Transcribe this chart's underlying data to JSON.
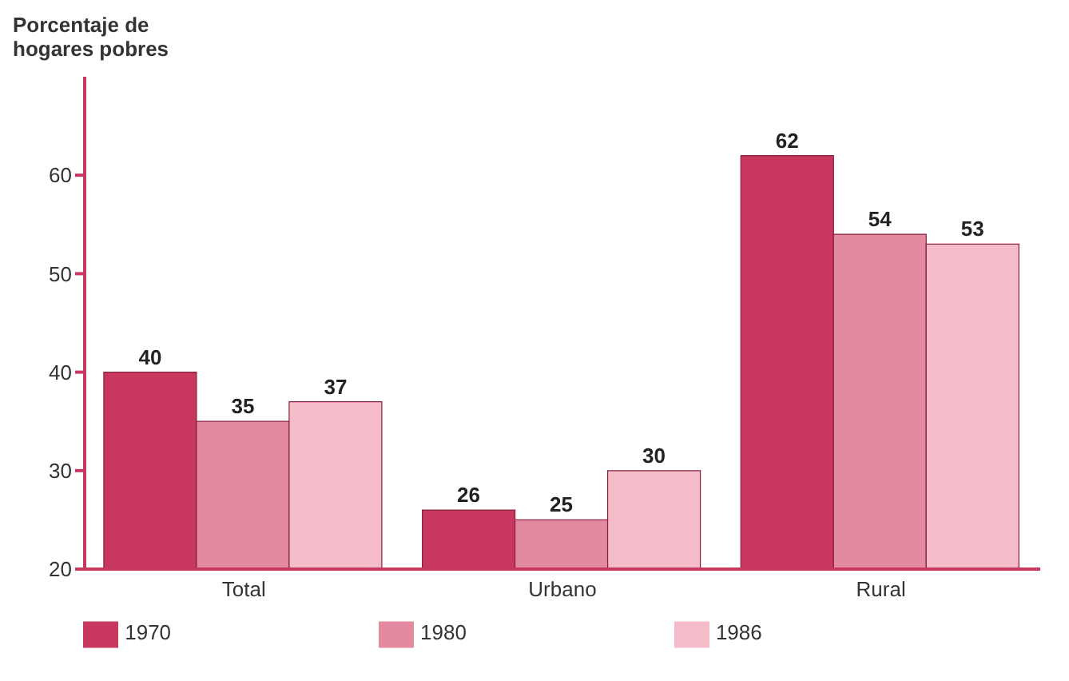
{
  "chart_data": {
    "type": "bar",
    "ylabel": "Porcentaje de hogares pobres",
    "categories": [
      "Total",
      "Urbano",
      "Rural"
    ],
    "series": [
      {
        "name": "1970",
        "color": "#c8385e",
        "values": [
          40,
          26,
          62
        ]
      },
      {
        "name": "1980",
        "color": "#e48aa0",
        "values": [
          35,
          25,
          54
        ]
      },
      {
        "name": "1986",
        "color": "#f3bcc8",
        "values": [
          37,
          30,
          53
        ]
      }
    ],
    "ylim": [
      20,
      70
    ],
    "yticks": [
      20,
      30,
      40,
      50,
      60
    ],
    "grid": false,
    "legend": "bottom",
    "data_labels": true
  }
}
